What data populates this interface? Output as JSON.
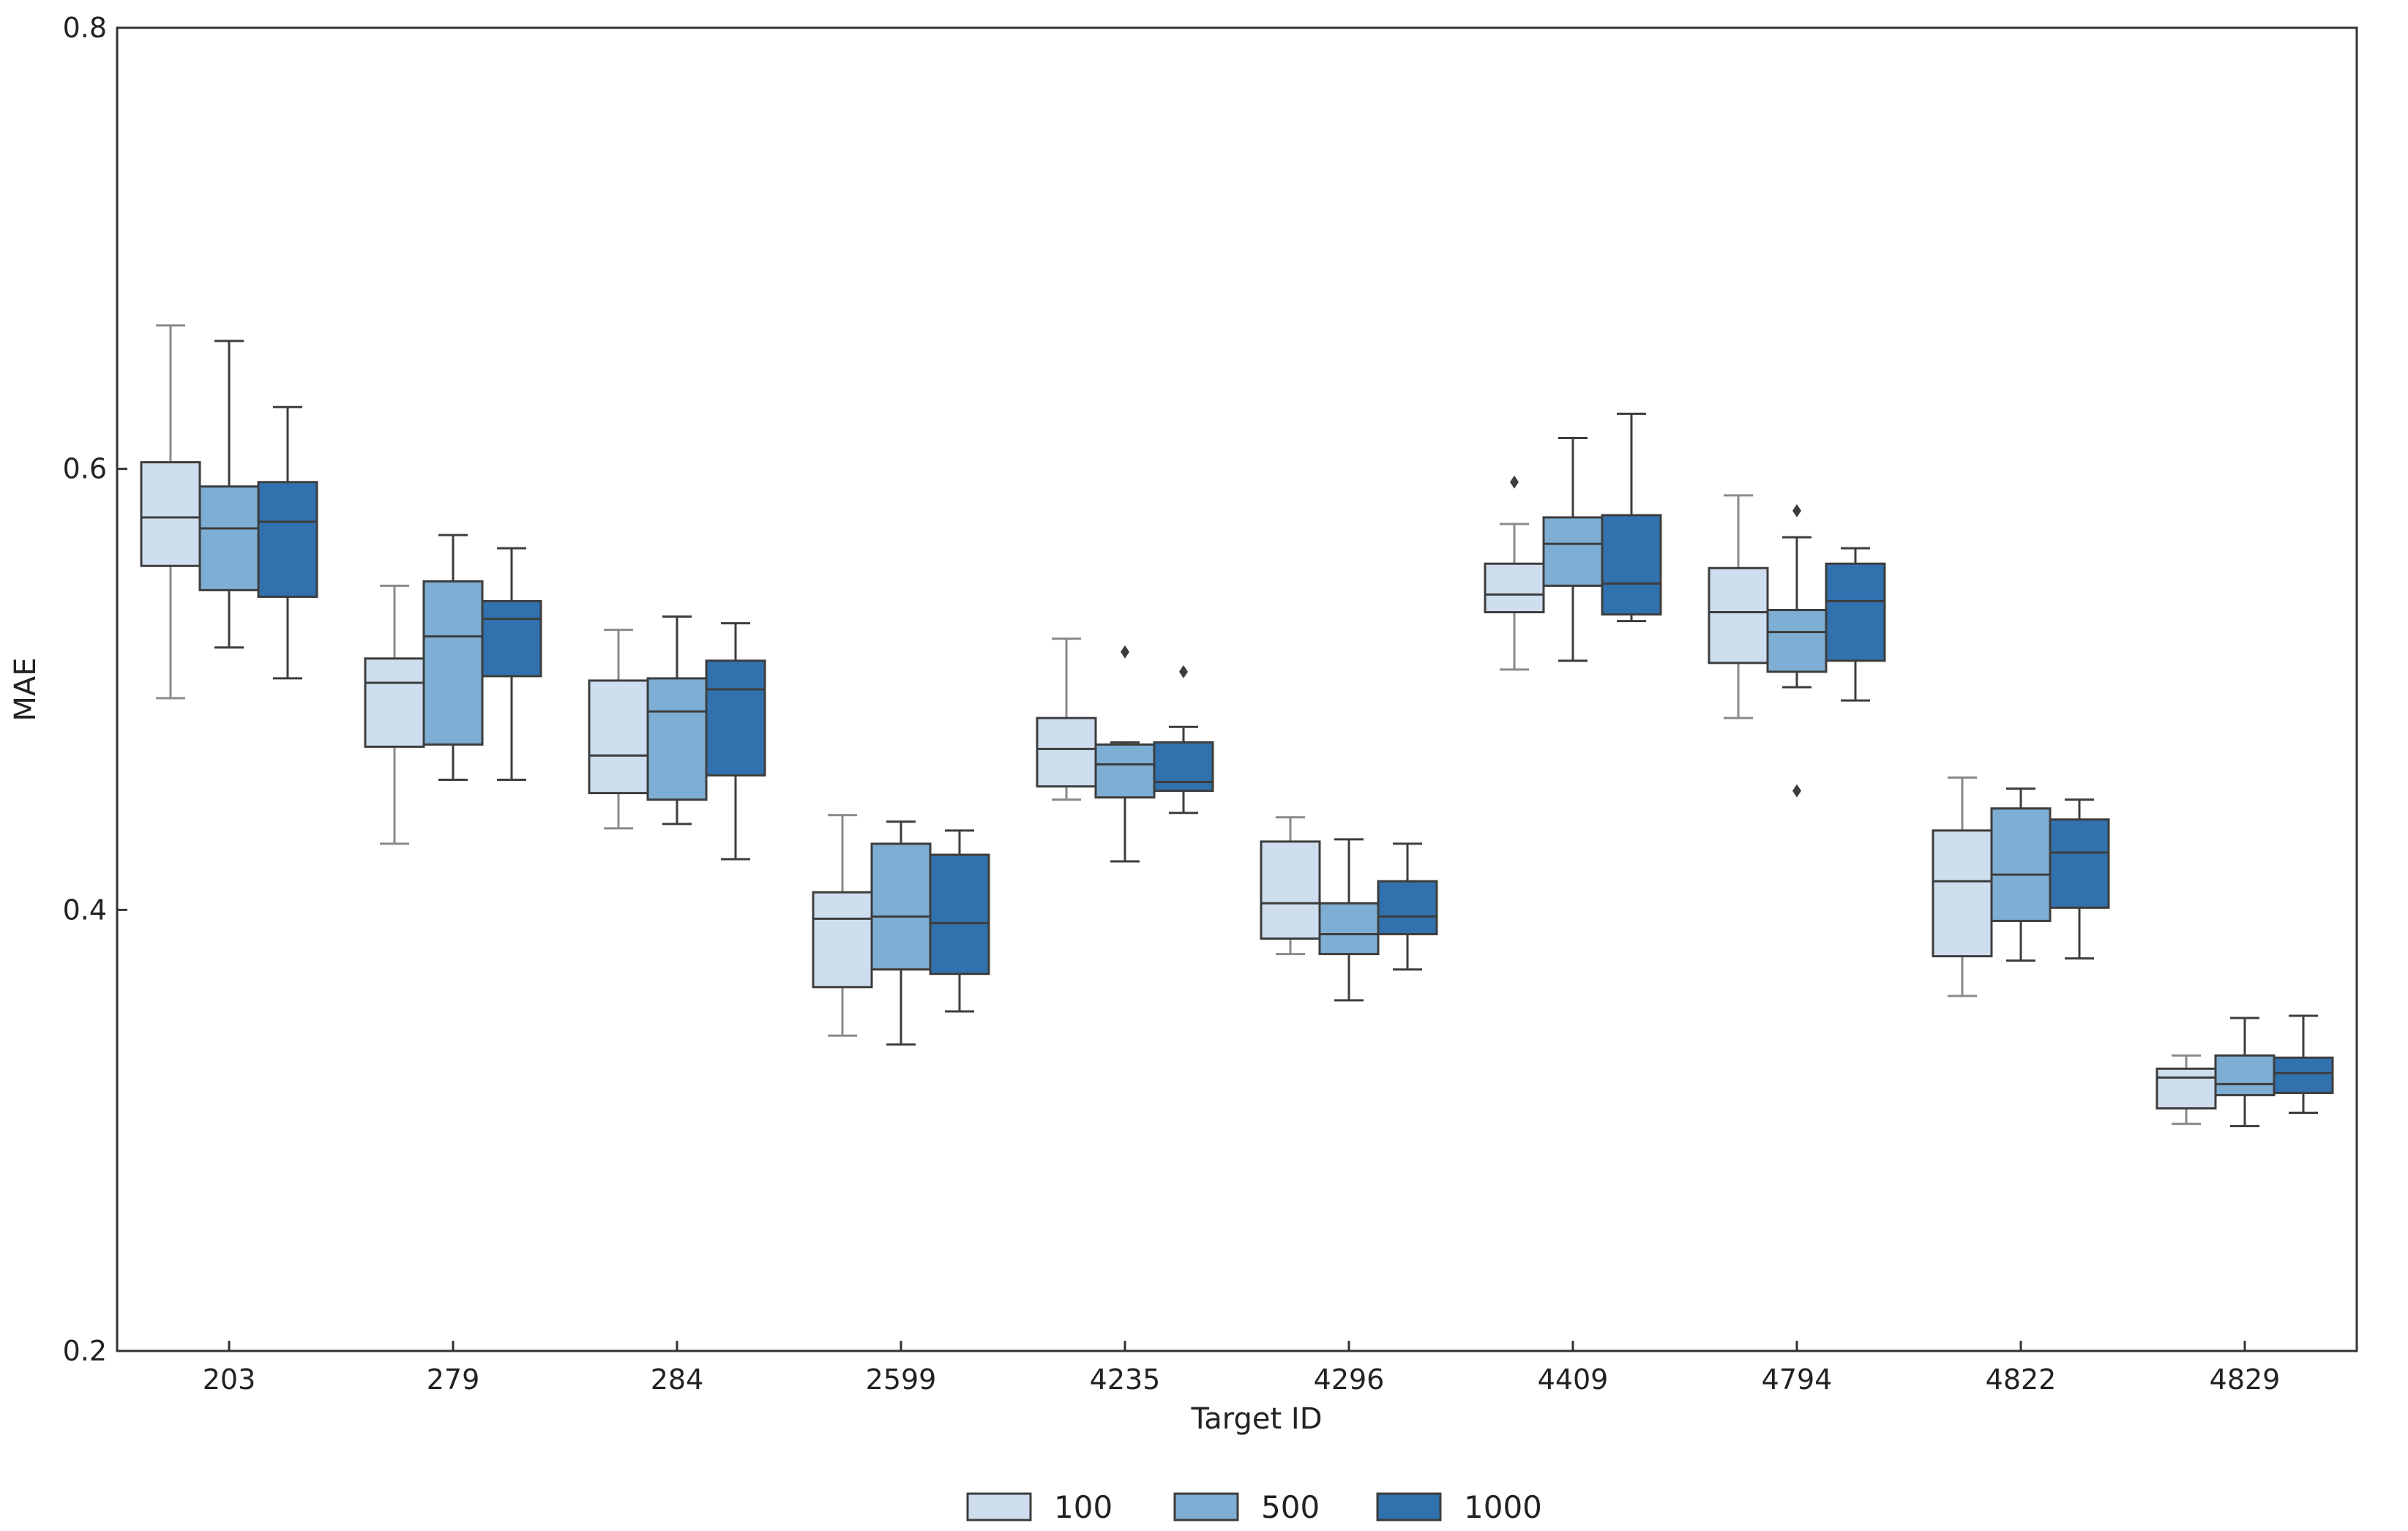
{
  "chart_data": {
    "type": "boxplot",
    "title": "",
    "xlabel": "Target ID",
    "ylabel": "MAE",
    "ylim": [
      0.2,
      0.8
    ],
    "yticks": [
      "0.2",
      "0.4",
      "0.6",
      "0.8"
    ],
    "grid": false,
    "legend_position": "bottom-center",
    "categories": [
      "203",
      "279",
      "284",
      "2599",
      "4235",
      "4296",
      "4409",
      "4794",
      "4822",
      "4829"
    ],
    "series": [
      {
        "name": "100",
        "color": "#cfdeee",
        "boxes": [
          {
            "whisker_low": 0.496,
            "q1": 0.556,
            "median": 0.578,
            "q3": 0.603,
            "whisker_high": 0.665,
            "outliers": []
          },
          {
            "whisker_low": 0.43,
            "q1": 0.474,
            "median": 0.503,
            "q3": 0.514,
            "whisker_high": 0.547,
            "outliers": []
          },
          {
            "whisker_low": 0.437,
            "q1": 0.453,
            "median": 0.47,
            "q3": 0.504,
            "whisker_high": 0.527,
            "outliers": []
          },
          {
            "whisker_low": 0.343,
            "q1": 0.365,
            "median": 0.396,
            "q3": 0.408,
            "whisker_high": 0.443,
            "outliers": []
          },
          {
            "whisker_low": 0.45,
            "q1": 0.456,
            "median": 0.473,
            "q3": 0.487,
            "whisker_high": 0.523,
            "outliers": []
          },
          {
            "whisker_low": 0.38,
            "q1": 0.387,
            "median": 0.403,
            "q3": 0.431,
            "whisker_high": 0.442,
            "outliers": []
          },
          {
            "whisker_low": 0.509,
            "q1": 0.535,
            "median": 0.543,
            "q3": 0.557,
            "whisker_high": 0.575,
            "outliers": [
              0.594
            ]
          },
          {
            "whisker_low": 0.487,
            "q1": 0.512,
            "median": 0.535,
            "q3": 0.555,
            "whisker_high": 0.588,
            "outliers": []
          },
          {
            "whisker_low": 0.361,
            "q1": 0.379,
            "median": 0.413,
            "q3": 0.436,
            "whisker_high": 0.46,
            "outliers": []
          },
          {
            "whisker_low": 0.303,
            "q1": 0.31,
            "median": 0.324,
            "q3": 0.328,
            "whisker_high": 0.334,
            "outliers": []
          }
        ]
      },
      {
        "name": "500",
        "color": "#7eaed3",
        "boxes": [
          {
            "whisker_low": 0.519,
            "q1": 0.545,
            "median": 0.573,
            "q3": 0.592,
            "whisker_high": 0.658,
            "outliers": []
          },
          {
            "whisker_low": 0.459,
            "q1": 0.475,
            "median": 0.524,
            "q3": 0.549,
            "whisker_high": 0.57,
            "outliers": []
          },
          {
            "whisker_low": 0.439,
            "q1": 0.45,
            "median": 0.49,
            "q3": 0.505,
            "whisker_high": 0.533,
            "outliers": []
          },
          {
            "whisker_low": 0.339,
            "q1": 0.373,
            "median": 0.397,
            "q3": 0.43,
            "whisker_high": 0.44,
            "outliers": []
          },
          {
            "whisker_low": 0.422,
            "q1": 0.451,
            "median": 0.466,
            "q3": 0.475,
            "whisker_high": 0.476,
            "outliers": [
              0.517
            ]
          },
          {
            "whisker_low": 0.359,
            "q1": 0.38,
            "median": 0.389,
            "q3": 0.403,
            "whisker_high": 0.432,
            "outliers": []
          },
          {
            "whisker_low": 0.513,
            "q1": 0.547,
            "median": 0.566,
            "q3": 0.578,
            "whisker_high": 0.614,
            "outliers": []
          },
          {
            "whisker_low": 0.501,
            "q1": 0.508,
            "median": 0.526,
            "q3": 0.536,
            "whisker_high": 0.569,
            "outliers": [
              0.581,
              0.454
            ]
          },
          {
            "whisker_low": 0.377,
            "q1": 0.395,
            "median": 0.416,
            "q3": 0.446,
            "whisker_high": 0.455,
            "outliers": []
          },
          {
            "whisker_low": 0.302,
            "q1": 0.316,
            "median": 0.321,
            "q3": 0.334,
            "whisker_high": 0.351,
            "outliers": []
          }
        ]
      },
      {
        "name": "1000",
        "color": "#3171ad",
        "boxes": [
          {
            "whisker_low": 0.505,
            "q1": 0.542,
            "median": 0.576,
            "q3": 0.594,
            "whisker_high": 0.628,
            "outliers": []
          },
          {
            "whisker_low": 0.459,
            "q1": 0.506,
            "median": 0.532,
            "q3": 0.54,
            "whisker_high": 0.564,
            "outliers": []
          },
          {
            "whisker_low": 0.423,
            "q1": 0.461,
            "median": 0.5,
            "q3": 0.513,
            "whisker_high": 0.53,
            "outliers": []
          },
          {
            "whisker_low": 0.354,
            "q1": 0.371,
            "median": 0.394,
            "q3": 0.425,
            "whisker_high": 0.436,
            "outliers": []
          },
          {
            "whisker_low": 0.444,
            "q1": 0.454,
            "median": 0.458,
            "q3": 0.476,
            "whisker_high": 0.483,
            "outliers": [
              0.508
            ]
          },
          {
            "whisker_low": 0.373,
            "q1": 0.389,
            "median": 0.397,
            "q3": 0.413,
            "whisker_high": 0.43,
            "outliers": []
          },
          {
            "whisker_low": 0.531,
            "q1": 0.534,
            "median": 0.548,
            "q3": 0.579,
            "whisker_high": 0.625,
            "outliers": []
          },
          {
            "whisker_low": 0.495,
            "q1": 0.513,
            "median": 0.54,
            "q3": 0.557,
            "whisker_high": 0.564,
            "outliers": []
          },
          {
            "whisker_low": 0.378,
            "q1": 0.401,
            "median": 0.426,
            "q3": 0.441,
            "whisker_high": 0.45,
            "outliers": []
          },
          {
            "whisker_low": 0.308,
            "q1": 0.317,
            "median": 0.326,
            "q3": 0.333,
            "whisker_high": 0.352,
            "outliers": []
          }
        ]
      }
    ]
  }
}
